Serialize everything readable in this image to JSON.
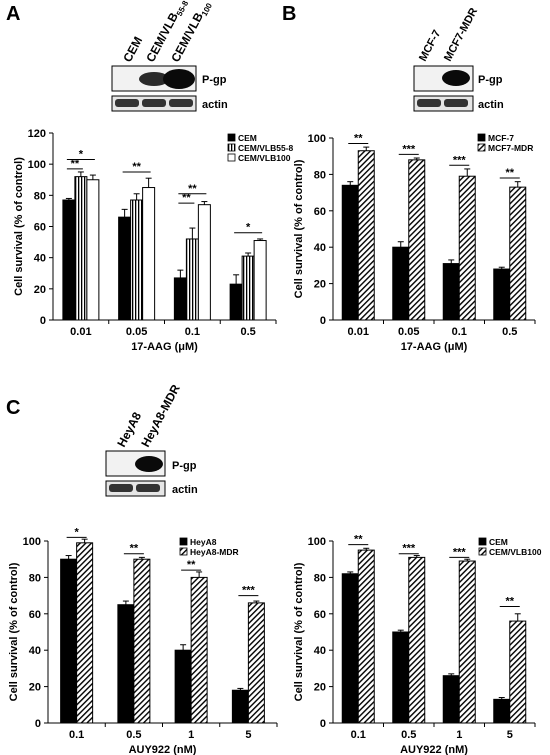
{
  "figure": {
    "panel_letters": [
      "A",
      "B",
      "C"
    ],
    "blot_labels": {
      "pgp": "P-gp",
      "actin": "actin"
    },
    "blots": [
      {
        "lanes": [
          "CEM",
          "CEM/VLB",
          "CEM/VLB"
        ],
        "lane_subscripts": [
          "",
          "55-8",
          "100"
        ]
      },
      {
        "lanes": [
          "MCF-7",
          "MCF7-MDR"
        ],
        "lane_subscripts": [
          "",
          ""
        ]
      },
      {
        "lanes": [
          "HeyA8",
          "HeyA8-MDR"
        ],
        "lane_subscripts": [
          "",
          ""
        ]
      }
    ]
  },
  "chart_data": [
    {
      "type": "bar",
      "categories": [
        "0.01",
        "0.05",
        "0.1",
        "0.5"
      ],
      "xlabel": "17-AAG (μM)",
      "ylabel": "Cell survival (% of control)",
      "ylim": [
        0,
        120
      ],
      "yticks": [
        "0",
        "20",
        "40",
        "60",
        "80",
        "100",
        "120"
      ],
      "legend_position": "top-right",
      "series": [
        {
          "name": "CEM",
          "values": [
            77,
            66,
            27,
            23
          ],
          "errors": [
            1,
            5,
            5,
            6
          ],
          "fill": "solid"
        },
        {
          "name": "CEM/VLB55-8",
          "values": [
            92,
            77,
            52,
            41
          ],
          "errors": [
            3,
            4,
            7,
            2
          ],
          "fill": "vertical"
        },
        {
          "name": "CEM/VLB100",
          "values": [
            90,
            85,
            74,
            51
          ],
          "errors": [
            3,
            6,
            2,
            1
          ],
          "fill": "white"
        }
      ],
      "significance": [
        {
          "cat": 0,
          "from": 0,
          "to": 2,
          "label": "*",
          "y": 103
        },
        {
          "cat": 0,
          "from": 0,
          "to": 1,
          "label": "**",
          "y": 97
        },
        {
          "cat": 1,
          "from": 0,
          "to": 2,
          "label": "**",
          "y": 95
        },
        {
          "cat": 2,
          "from": 0,
          "to": 2,
          "label": "**",
          "y": 81
        },
        {
          "cat": 2,
          "from": 0,
          "to": 1,
          "label": "**",
          "y": 75
        },
        {
          "cat": 3,
          "from": 0,
          "to": 2,
          "label": "*",
          "y": 56
        }
      ]
    },
    {
      "type": "bar",
      "categories": [
        "0.01",
        "0.05",
        "0.1",
        "0.5"
      ],
      "xlabel": "17-AAG (μM)",
      "ylabel": "Cell survival (% of control)",
      "ylim": [
        0,
        100
      ],
      "yticks": [
        "0",
        "20",
        "40",
        "60",
        "80",
        "100"
      ],
      "legend_position": "top-right",
      "series": [
        {
          "name": "MCF-7",
          "values": [
            74,
            40,
            31,
            28
          ],
          "errors": [
            2,
            3,
            2,
            1
          ],
          "fill": "solid"
        },
        {
          "name": "MCF7-MDR",
          "values": [
            93,
            88,
            79,
            73
          ],
          "errors": [
            2,
            1,
            4,
            3
          ],
          "fill": "diagonal"
        }
      ],
      "significance": [
        {
          "cat": 0,
          "from": 0,
          "to": 1,
          "label": "**",
          "y": 97
        },
        {
          "cat": 1,
          "from": 0,
          "to": 1,
          "label": "***",
          "y": 91
        },
        {
          "cat": 2,
          "from": 0,
          "to": 1,
          "label": "***",
          "y": 85
        },
        {
          "cat": 3,
          "from": 0,
          "to": 1,
          "label": "**",
          "y": 78
        }
      ]
    },
    {
      "type": "bar",
      "categories": [
        "0.1",
        "0.5",
        "1",
        "5"
      ],
      "xlabel": "AUY922 (nM)",
      "ylabel": "Cell survival (% of control)",
      "ylim": [
        0,
        100
      ],
      "yticks": [
        "0",
        "20",
        "40",
        "60",
        "80",
        "100"
      ],
      "legend_position": "top-right",
      "series": [
        {
          "name": "HeyA8",
          "values": [
            90,
            65,
            40,
            18
          ],
          "errors": [
            2,
            2,
            3,
            1
          ],
          "fill": "solid"
        },
        {
          "name": "HeyA8-MDR",
          "values": [
            99,
            90,
            80,
            66
          ],
          "errors": [
            2,
            1,
            3,
            1
          ],
          "fill": "diagonal"
        }
      ],
      "significance": [
        {
          "cat": 0,
          "from": 0,
          "to": 1,
          "label": "*",
          "y": 102
        },
        {
          "cat": 1,
          "from": 0,
          "to": 1,
          "label": "**",
          "y": 93
        },
        {
          "cat": 2,
          "from": 0,
          "to": 1,
          "label": "**",
          "y": 84
        },
        {
          "cat": 3,
          "from": 0,
          "to": 1,
          "label": "***",
          "y": 70
        }
      ]
    },
    {
      "type": "bar",
      "categories": [
        "0.1",
        "0.5",
        "1",
        "5"
      ],
      "xlabel": "AUY922 (nM)",
      "ylabel": "Cell survival (% of control)",
      "ylim": [
        0,
        100
      ],
      "yticks": [
        "0",
        "20",
        "40",
        "60",
        "80",
        "100"
      ],
      "legend_position": "top-right",
      "series": [
        {
          "name": "CEM",
          "values": [
            82,
            50,
            26,
            13
          ],
          "errors": [
            1,
            1,
            1,
            1
          ],
          "fill": "solid"
        },
        {
          "name": "CEM/VLB100",
          "values": [
            95,
            91,
            89,
            56
          ],
          "errors": [
            1,
            1,
            1,
            4
          ],
          "fill": "diagonal"
        }
      ],
      "significance": [
        {
          "cat": 0,
          "from": 0,
          "to": 1,
          "label": "**",
          "y": 98
        },
        {
          "cat": 1,
          "from": 0,
          "to": 1,
          "label": "***",
          "y": 93
        },
        {
          "cat": 2,
          "from": 0,
          "to": 1,
          "label": "***",
          "y": 91
        },
        {
          "cat": 3,
          "from": 0,
          "to": 1,
          "label": "**",
          "y": 64
        }
      ]
    }
  ]
}
